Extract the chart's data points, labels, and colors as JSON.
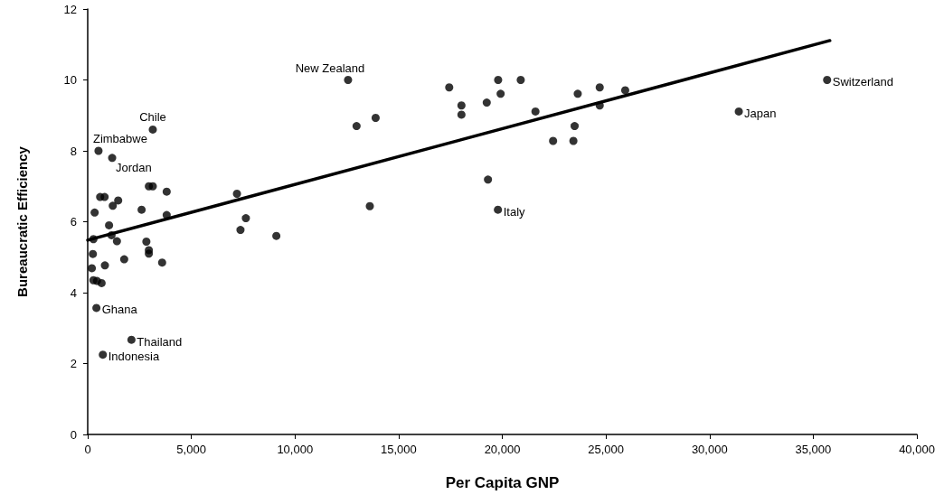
{
  "chart_data": {
    "type": "scatter",
    "xlabel": "Per Capita GNP",
    "ylabel": "Bureaucratic Efficiency",
    "xlim": [
      0,
      40000
    ],
    "xticks": [
      0,
      {
        "value": 5000,
        "label": "5,000"
      },
      {
        "value": 10000,
        "label": "10,000"
      },
      {
        "value": 15000,
        "label": "15,000"
      },
      {
        "value": 20000,
        "label": "20,000"
      },
      {
        "value": 25000,
        "label": "25,000"
      },
      {
        "value": 30000,
        "label": "30,000"
      },
      {
        "value": 35000,
        "label": "35,000"
      },
      {
        "value": 40000,
        "label": "40,000"
      }
    ],
    "ylim": [
      0,
      12
    ],
    "yticks": [
      0,
      2,
      4,
      6,
      8,
      10,
      12
    ],
    "grid": false,
    "marker": "circle",
    "series": [
      {
        "color": "#000000",
        "x": [
          3140,
          520,
          1180,
          2950,
          3140,
          3810,
          600,
          815,
          1470,
          1210,
          335,
          2600,
          7200,
          3810,
          7630,
          7370,
          1030,
          275,
          1150,
          1410,
          2830,
          2950,
          2950,
          250,
          1760,
          3590,
          830,
          200,
          275,
          450,
          670,
          420,
          2110,
          730,
          9100,
          12560,
          12970,
          13890,
          13610,
          17440,
          18030,
          18030,
          19250,
          19800,
          19920,
          20890,
          21600,
          19310,
          19790,
          22450,
          23430,
          23490,
          23640,
          24700,
          24700,
          25930,
          31410,
          35670
        ],
        "values": [
          8.6,
          8.0,
          7.8,
          7.0,
          7.0,
          6.85,
          6.7,
          6.7,
          6.6,
          6.45,
          6.26,
          6.34,
          6.79,
          6.19,
          6.1,
          5.77,
          5.9,
          5.51,
          5.62,
          5.45,
          5.44,
          5.2,
          5.1,
          5.09,
          4.94,
          4.85,
          4.77,
          4.69,
          4.35,
          4.33,
          4.27,
          3.57,
          2.67,
          2.25,
          5.6,
          10.0,
          8.7,
          8.93,
          6.44,
          9.79,
          9.28,
          9.02,
          9.36,
          10.0,
          9.61,
          10.0,
          9.11,
          7.19,
          6.34,
          8.28,
          8.28,
          8.7,
          9.61,
          9.79,
          9.28,
          9.71,
          9.11,
          10.0
        ]
      },
      {
        "type": "line",
        "marker": "none",
        "color": "#000000",
        "x": [
          0,
          35800
        ],
        "values": [
          5.48,
          11.11
        ]
      }
    ],
    "annotations": [
      {
        "text": "Chile",
        "x": 3140,
        "y": 8.6
      },
      {
        "text": "Zimbabwe",
        "x": 520,
        "y": 8.0
      },
      {
        "text": "Jordan",
        "x": 1180,
        "y": 7.8
      },
      {
        "text": "Ghana",
        "x": 420,
        "y": 3.57
      },
      {
        "text": "Thailand",
        "x": 2110,
        "y": 2.67
      },
      {
        "text": "Indonesia",
        "x": 730,
        "y": 2.25
      },
      {
        "text": "New Zealand",
        "x": 12560,
        "y": 10.0
      },
      {
        "text": "Italy",
        "x": 19790,
        "y": 6.34
      },
      {
        "text": "Japan",
        "x": 31410,
        "y": 9.11
      },
      {
        "text": "Switzerland",
        "x": 35670,
        "y": 10.0
      }
    ]
  }
}
